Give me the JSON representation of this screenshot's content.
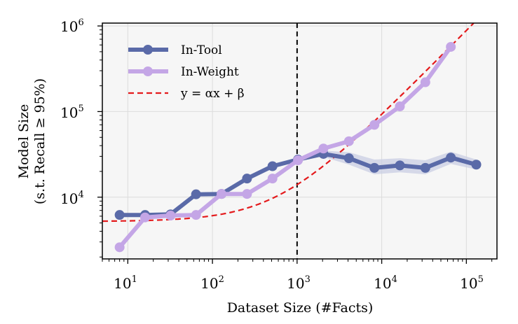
{
  "chart_data": {
    "type": "line",
    "xscale": "log",
    "yscale": "log",
    "xlim": [
      5,
      230000
    ],
    "ylim": [
      1900,
      1080000
    ],
    "xlabel": "Dataset Size (#Facts)",
    "ylabel_line1": "Model Size",
    "ylabel_line2": "(s.t. Recall ≥ 95%)",
    "x_ticks": [
      {
        "value": 10,
        "base": "10",
        "exp": "1"
      },
      {
        "value": 100,
        "base": "10",
        "exp": "2"
      },
      {
        "value": 1000,
        "base": "10",
        "exp": "3"
      },
      {
        "value": 10000,
        "base": "10",
        "exp": "4"
      },
      {
        "value": 100000,
        "base": "10",
        "exp": "5"
      }
    ],
    "y_ticks": [
      {
        "value": 10000,
        "base": "10",
        "exp": "4"
      },
      {
        "value": 100000,
        "base": "10",
        "exp": "5"
      },
      {
        "value": 1000000,
        "base": "10",
        "exp": "6"
      }
    ],
    "vline_x": 1000,
    "grid": true,
    "legend_position": "top-left",
    "series": [
      {
        "name": "In-Tool",
        "color": "#5a6aa8",
        "band_color": "#c9cee3",
        "x": [
          8,
          16,
          32,
          64,
          128,
          256,
          512,
          1024,
          2048,
          4096,
          8192,
          16384,
          32768,
          65536,
          131072
        ],
        "y": [
          6200,
          6200,
          6300,
          10800,
          10900,
          16500,
          23000,
          27500,
          32000,
          28500,
          22000,
          23500,
          22000,
          29000,
          24000
        ],
        "band_lower": [
          null,
          null,
          null,
          null,
          null,
          null,
          null,
          null,
          29500,
          24000,
          18500,
          19500,
          18500,
          24500,
          21000
        ],
        "band_upper": [
          null,
          null,
          null,
          null,
          null,
          null,
          null,
          null,
          35000,
          33500,
          27500,
          28500,
          27000,
          34000,
          27500
        ]
      },
      {
        "name": "In-Weight",
        "color": "#c4a6e6",
        "x": [
          8,
          16,
          32,
          64,
          128,
          256,
          512,
          1024,
          2048,
          4096,
          8192,
          16384,
          32768,
          65536
        ],
        "y": [
          2600,
          5800,
          6100,
          6200,
          10900,
          10900,
          16500,
          27000,
          37000,
          45000,
          70000,
          115000,
          220000,
          570000
        ]
      },
      {
        "name": "y = αx + β",
        "color": "#e41a1c",
        "dashed": true,
        "alpha": 8.8,
        "beta": 5200
      }
    ]
  }
}
